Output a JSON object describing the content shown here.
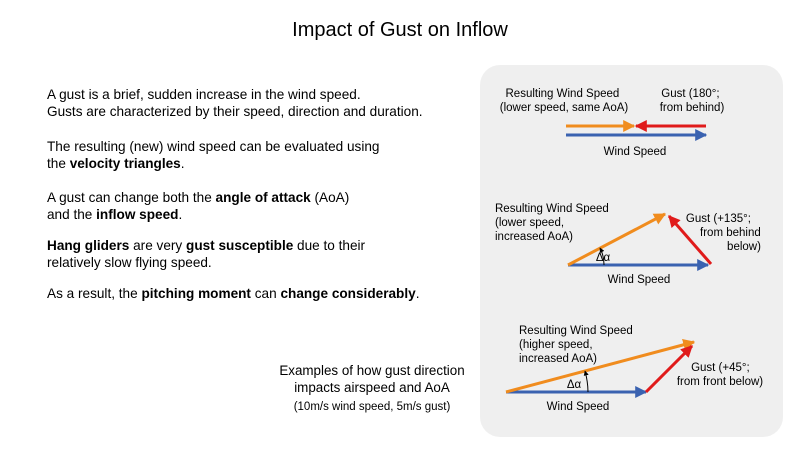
{
  "title": "Impact of Gust on Inflow",
  "paragraphs": [
    {
      "lines": [
        [
          {
            "t": "A gust is a brief, sudden increase in the wind speed."
          }
        ],
        [
          {
            "t": "Gusts are characterized by their speed, direction and duration."
          }
        ]
      ]
    },
    {
      "lines": [
        [
          {
            "t": "The resulting (new) wind speed can be evaluated using"
          }
        ],
        [
          {
            "t": "the "
          },
          {
            "t": "velocity triangles",
            "b": true
          },
          {
            "t": "."
          }
        ]
      ]
    },
    {
      "lines": [
        [
          {
            "t": "A gust can change both the "
          },
          {
            "t": "angle of attack",
            "b": true
          },
          {
            "t": " (AoA)"
          }
        ],
        [
          {
            "t": "and the "
          },
          {
            "t": "inflow speed",
            "b": true
          },
          {
            "t": "."
          }
        ]
      ]
    },
    {
      "lines": [
        [
          {
            "t": "Hang gliders",
            "b": true
          },
          {
            "t": " are very "
          },
          {
            "t": "gust susceptible",
            "b": true
          },
          {
            "t": " due to their"
          }
        ],
        [
          {
            "t": "relatively slow flying speed."
          }
        ]
      ]
    },
    {
      "lines": [
        [
          {
            "t": "As a result, the "
          },
          {
            "t": "pitching moment",
            "b": true
          },
          {
            "t": " can "
          },
          {
            "t": "change considerably",
            "b": true
          },
          {
            "t": "."
          }
        ]
      ]
    }
  ],
  "caption": {
    "line1": "Examples of how gust direction",
    "line2": "impacts airspeed and AoA",
    "line3": "(10m/s wind speed, 5m/s gust)"
  },
  "colors": {
    "wind": "#3a62b0",
    "resulting": "#f08c1e",
    "gust": "#e01b1b",
    "panel": "#efefef"
  },
  "diagrams": {
    "d1": {
      "gust_direction": "180° from behind",
      "resulting_lines": [
        "Resulting Wind Speed",
        "(lower speed, same AoA)"
      ],
      "gust_lines": [
        "Gust (180°;",
        "from behind)"
      ],
      "wind_label": "Wind Speed"
    },
    "d2": {
      "gust_direction": "+135°",
      "resulting_lines": [
        "Resulting Wind Speed",
        "(lower speed,",
        "increased AoA)"
      ],
      "gust_lines": [
        "Gust (+135°;",
        "from behind",
        "below)"
      ],
      "wind_label": "Wind Speed",
      "angle_label": "Δα"
    },
    "d3": {
      "gust_direction": "+45°",
      "resulting_lines": [
        "Resulting Wind Speed",
        "(higher speed,",
        "increased AoA)"
      ],
      "gust_lines": [
        "Gust (+45°;",
        "from front below)"
      ],
      "wind_label": "Wind Speed",
      "angle_label": "Δα"
    }
  }
}
